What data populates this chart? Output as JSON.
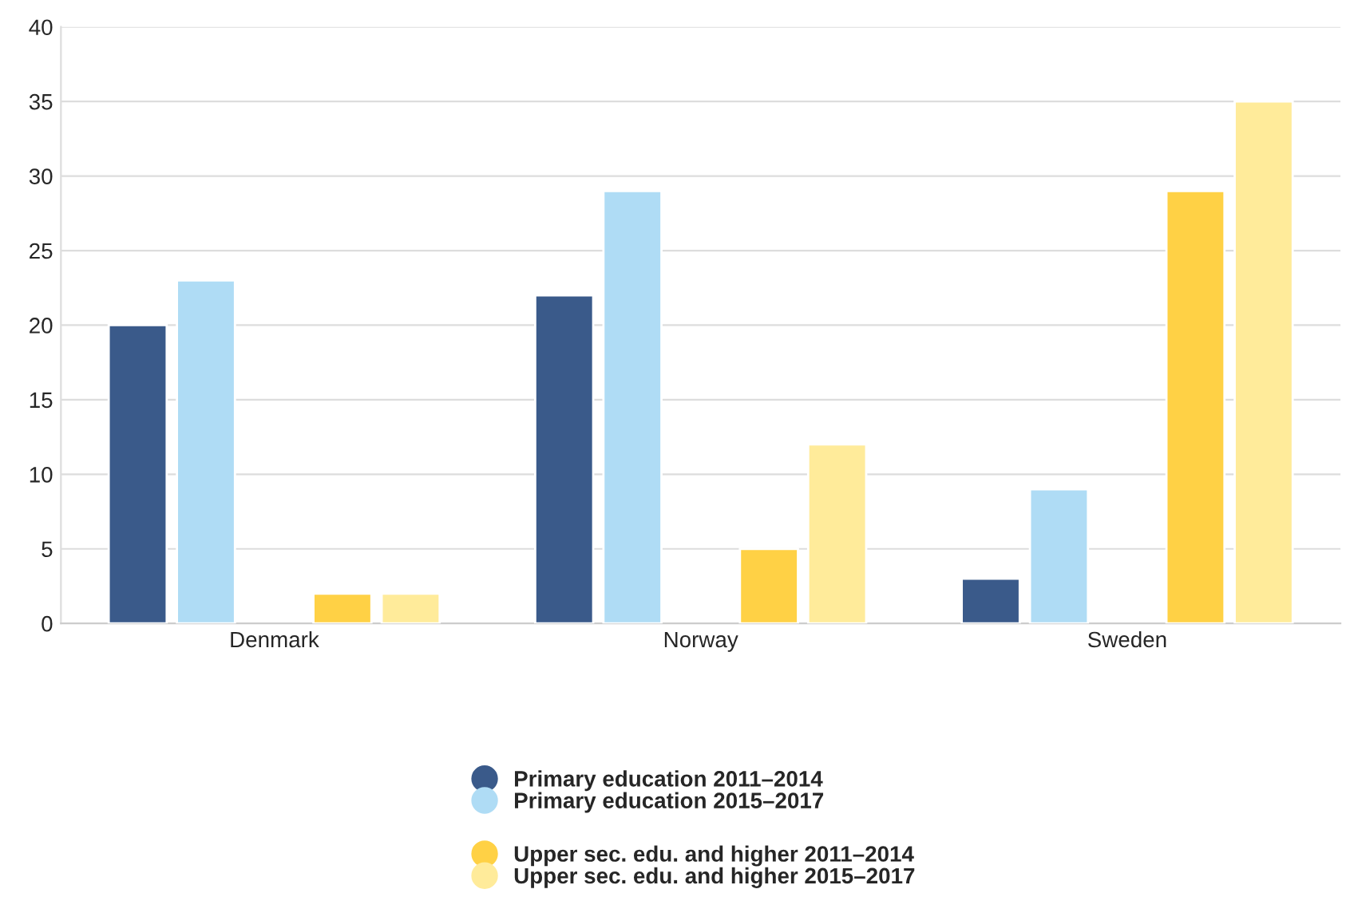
{
  "chart_data": {
    "type": "bar",
    "categories": [
      "Denmark",
      "Norway",
      "Sweden"
    ],
    "series": [
      {
        "name": "Primary education 2011–2014",
        "color": "#3a5a8a",
        "values": [
          20,
          22,
          3
        ]
      },
      {
        "name": "Primary education 2015–2017",
        "color": "#afdcf5",
        "values": [
          23,
          29,
          9
        ]
      },
      {
        "name": "Upper sec. edu. and higher 2011–2014",
        "color": "#ffd145",
        "values": [
          2,
          5,
          29
        ]
      },
      {
        "name": "Upper sec. edu. and higher 2015–2017",
        "color": "#ffeb9a",
        "values": [
          2,
          12,
          35
        ]
      }
    ],
    "ylim": [
      0,
      40
    ],
    "yticks": [
      0,
      5,
      10,
      15,
      20,
      25,
      30,
      35,
      40
    ],
    "grid": "y",
    "legend": "bottom",
    "marker": "circle"
  }
}
